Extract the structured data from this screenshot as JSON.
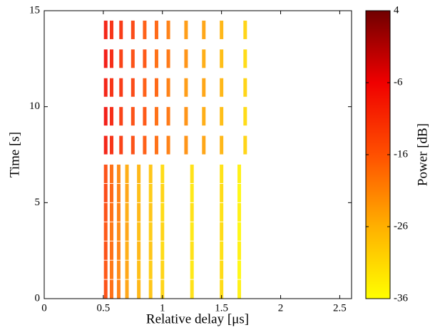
{
  "chart_data": {
    "type": "scatter",
    "xlabel": "Relative delay [μs]",
    "ylabel": "Time [s]",
    "colorbar_label": "Power [dB]",
    "xlim": [
      0,
      2.6
    ],
    "xticks": [
      0,
      0.5,
      1,
      1.5,
      2,
      2.5
    ],
    "ylim": [
      0,
      15
    ],
    "yticks": [
      0,
      5,
      10,
      15
    ],
    "clim": [
      -36,
      4
    ],
    "cticks": [
      -36,
      -26,
      -16,
      -6,
      4
    ],
    "colormap": [
      "#ffff00",
      "#ffb000",
      "#ff5000",
      "#f00000",
      "#700000"
    ],
    "x": [
      0.52,
      0.57,
      0.63,
      0.7,
      0.8,
      0.9,
      1.0,
      1.25,
      1.5,
      1.65,
      0.52,
      0.57,
      0.63,
      0.7,
      0.8,
      0.9,
      1.0,
      1.25,
      1.5,
      1.65,
      0.52,
      0.57,
      0.63,
      0.7,
      0.8,
      0.9,
      1.0,
      1.25,
      1.5,
      1.65,
      0.52,
      0.57,
      0.63,
      0.7,
      0.8,
      0.9,
      1.0,
      1.25,
      1.5,
      1.65,
      0.52,
      0.57,
      0.63,
      0.7,
      0.8,
      0.9,
      1.0,
      1.25,
      1.5,
      1.65,
      0.52,
      0.57,
      0.63,
      0.7,
      0.8,
      0.9,
      1.0,
      1.25,
      1.5,
      1.65,
      0.52,
      0.57,
      0.63,
      0.7,
      0.8,
      0.9,
      1.0,
      1.25,
      1.5,
      1.65,
      0.52,
      0.57,
      0.65,
      0.75,
      0.85,
      0.95,
      1.05,
      1.2,
      1.35,
      1.5,
      1.7,
      0.52,
      0.57,
      0.65,
      0.75,
      0.85,
      0.95,
      1.05,
      1.2,
      1.35,
      1.5,
      1.7,
      0.52,
      0.57,
      0.65,
      0.75,
      0.85,
      0.95,
      1.05,
      1.2,
      1.35,
      1.5,
      1.7,
      0.52,
      0.57,
      0.65,
      0.75,
      0.85,
      0.95,
      1.05,
      1.2,
      1.35,
      1.5,
      1.7,
      0.52,
      0.57,
      0.65,
      0.75,
      0.85,
      0.95,
      1.05,
      1.2,
      1.35,
      1.5,
      1.7
    ],
    "y": [
      0.5,
      0.5,
      0.5,
      0.5,
      0.5,
      0.5,
      0.5,
      0.5,
      0.5,
      0.5,
      1.5,
      1.5,
      1.5,
      1.5,
      1.5,
      1.5,
      1.5,
      1.5,
      1.5,
      1.5,
      2.5,
      2.5,
      2.5,
      2.5,
      2.5,
      2.5,
      2.5,
      2.5,
      2.5,
      2.5,
      3.5,
      3.5,
      3.5,
      3.5,
      3.5,
      3.5,
      3.5,
      3.5,
      3.5,
      3.5,
      4.5,
      4.5,
      4.5,
      4.5,
      4.5,
      4.5,
      4.5,
      4.5,
      4.5,
      4.5,
      5.5,
      5.5,
      5.5,
      5.5,
      5.5,
      5.5,
      5.5,
      5.5,
      5.5,
      5.5,
      6.5,
      6.5,
      6.5,
      6.5,
      6.5,
      6.5,
      6.5,
      6.5,
      6.5,
      6.5,
      8,
      8,
      8,
      8,
      8,
      8,
      8,
      8,
      8,
      8,
      8,
      9.5,
      9.5,
      9.5,
      9.5,
      9.5,
      9.5,
      9.5,
      9.5,
      9.5,
      9.5,
      9.5,
      11,
      11,
      11,
      11,
      11,
      11,
      11,
      11,
      11,
      11,
      11,
      12.5,
      12.5,
      12.5,
      12.5,
      12.5,
      12.5,
      12.5,
      12.5,
      12.5,
      12.5,
      12.5,
      14,
      14,
      14,
      14,
      14,
      14,
      14,
      14,
      14,
      14,
      14
    ],
    "power": [
      -14,
      -18,
      -20,
      -24,
      -26,
      -28,
      -30,
      -32,
      -31,
      -34,
      -15,
      -19,
      -21,
      -24,
      -27,
      -29,
      -30,
      -33,
      -31,
      -35,
      -14,
      -18,
      -20,
      -25,
      -26,
      -28,
      -31,
      -32,
      -32,
      -34,
      -15,
      -19,
      -21,
      -24,
      -27,
      -29,
      -30,
      -33,
      -31,
      -35,
      -14,
      -18,
      -20,
      -25,
      -26,
      -28,
      -31,
      -32,
      -32,
      -34,
      -13,
      -17,
      -20,
      -24,
      -27,
      -29,
      -30,
      -33,
      -31,
      -35,
      -14,
      -18,
      -21,
      -25,
      -26,
      -28,
      -31,
      -32,
      -32,
      -34,
      -8,
      -10,
      -12,
      -14,
      -16,
      -18,
      -20,
      -22,
      -24,
      -26,
      -30,
      -7,
      -9,
      -12,
      -14,
      -15,
      -18,
      -19,
      -22,
      -25,
      -27,
      -31,
      -8,
      -10,
      -11,
      -13,
      -16,
      -17,
      -20,
      -23,
      -24,
      -26,
      -30,
      -7,
      -9,
      -12,
      -14,
      -15,
      -18,
      -19,
      -22,
      -25,
      -27,
      -31,
      -8,
      -10,
      -11,
      -13,
      -16,
      -17,
      -20,
      -23,
      -24,
      -26,
      -30
    ]
  }
}
